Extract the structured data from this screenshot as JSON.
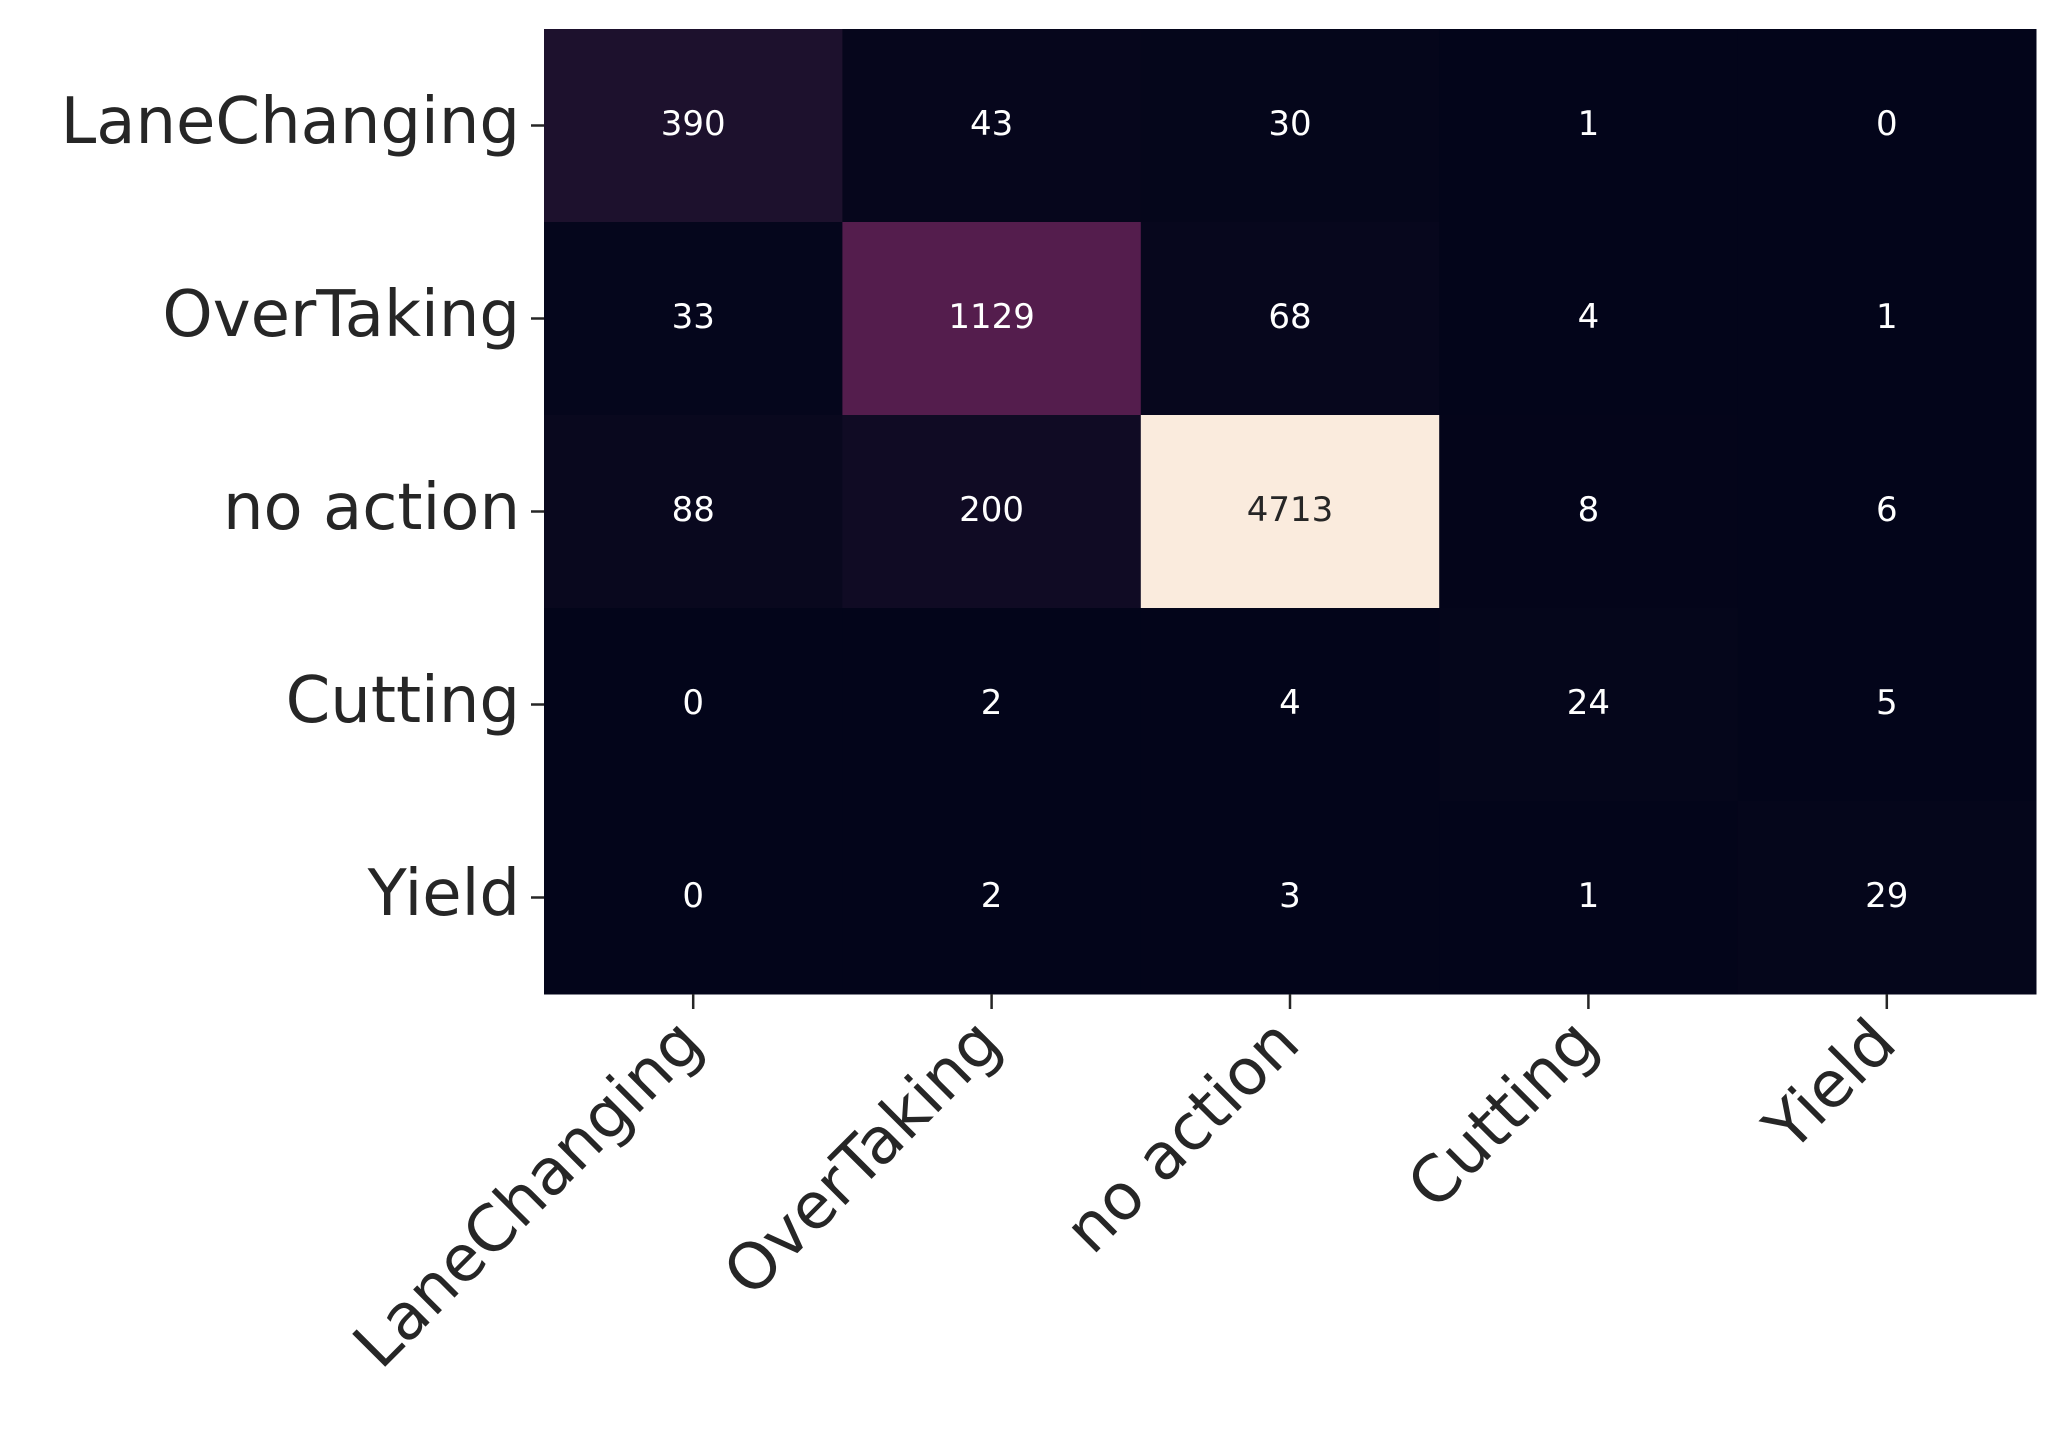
{
  "chart_data": {
    "type": "heatmap",
    "x_categories": [
      "LaneChanging",
      "OverTaking",
      "no action",
      "Cutting",
      "Yield"
    ],
    "y_categories": [
      "LaneChanging",
      "OverTaking",
      "no action",
      "Cutting",
      "Yield"
    ],
    "values": [
      [
        390,
        43,
        30,
        1,
        0
      ],
      [
        33,
        1129,
        68,
        4,
        1
      ],
      [
        88,
        200,
        4713,
        8,
        6
      ],
      [
        0,
        2,
        4,
        24,
        5
      ],
      [
        0,
        2,
        3,
        1,
        29
      ]
    ],
    "colormap": [
      "#03051a",
      "#221331",
      "#451c47",
      "#6a1f56",
      "#921c5b",
      "#b91657",
      "#dd2c45",
      "#f06043",
      "#f5936a",
      "#f6c19f",
      "#faebdd"
    ]
  }
}
